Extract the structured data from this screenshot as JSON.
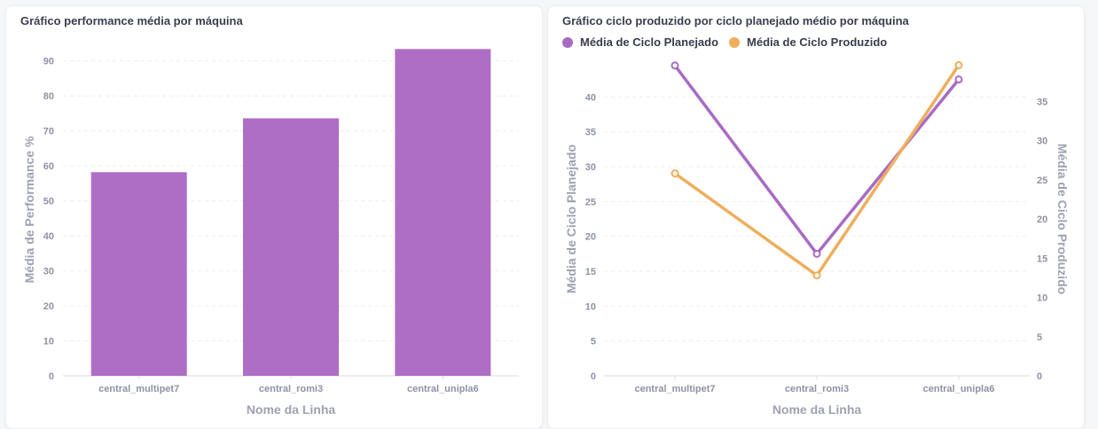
{
  "left_chart": {
    "title": "Gráfico performance média por máquina"
  },
  "right_chart": {
    "title": "Gráfico ciclo produzido por ciclo planejado médio por máquina",
    "legend": [
      {
        "label": "Média de Ciclo Planejado",
        "color": "#a86bc3"
      },
      {
        "label": "Média de Ciclo Produzido",
        "color": "#efae5c"
      }
    ]
  },
  "colors": {
    "bar": "#af6ec6",
    "planned": "#a86bc3",
    "produced": "#efae5c",
    "axis_text": "#8e93a4",
    "axis_label": "#9ea2b2"
  },
  "chart_data": [
    {
      "type": "bar",
      "title": "Gráfico performance média por máquina",
      "categories": [
        "central_multipet7",
        "central_romi3",
        "central_unipla6"
      ],
      "values": [
        58.2,
        73.6,
        93.4
      ],
      "xlabel": "Nome da Linha",
      "ylabel": "Média de Performance %",
      "ylim": [
        0,
        95
      ],
      "yticks": [
        0,
        10,
        20,
        30,
        40,
        50,
        60,
        70,
        80,
        90
      ]
    },
    {
      "type": "line",
      "title": "Gráfico ciclo produzido por ciclo planejado médio por máquina",
      "categories": [
        "central_multipet7",
        "central_romi3",
        "central_unipla6"
      ],
      "xlabel": "Nome da Linha",
      "ylabel_left": "Média de Ciclo Planejado",
      "ylabel_right": "Média de Ciclo Produzido",
      "ylim_left": [
        0,
        45
      ],
      "yticks_left": [
        0,
        5,
        10,
        15,
        20,
        25,
        30,
        35,
        40
      ],
      "ylim_right": [
        0,
        40
      ],
      "yticks_right": [
        0,
        5,
        10,
        15,
        20,
        25,
        30,
        35
      ],
      "series": [
        {
          "name": "Média de Ciclo Planejado",
          "axis": "left",
          "values": [
            44.5,
            17.5,
            42.5
          ]
        },
        {
          "name": "Média de Ciclo Produzido",
          "axis": "right",
          "values": [
            25.8,
            12.8,
            39.6
          ]
        }
      ]
    }
  ]
}
